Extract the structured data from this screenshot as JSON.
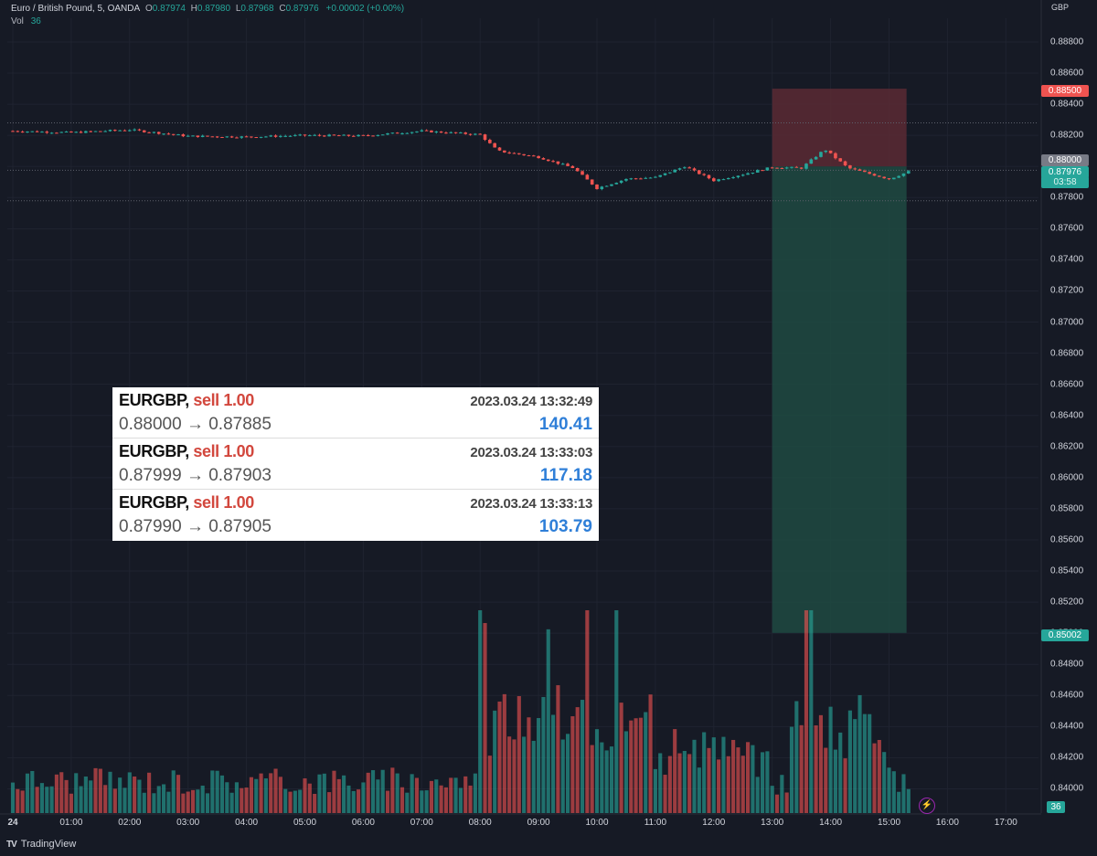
{
  "header": {
    "instrument": "Euro / British Pound, 5, OANDA",
    "o_label": "O",
    "o_value": "0.87974",
    "h_label": "H",
    "h_value": "0.87980",
    "l_label": "L",
    "l_value": "0.87968",
    "c_label": "C",
    "c_value": "0.87976",
    "change": "+0.00002 (+0.00%)",
    "vol_label": "Vol",
    "vol_value": "36"
  },
  "currency": "GBP",
  "price_tags": {
    "stop": "0.88500",
    "entry": "0.88000",
    "last_price": "0.87976",
    "countdown": "03:58",
    "target": "0.85002",
    "volume": "36"
  },
  "colors": {
    "background": "#161a25",
    "up": "#26a69a",
    "down": "#ef5350",
    "profit_zone": "#1f4a42",
    "loss_zone": "#5a2a34",
    "profit_text": "#2f7fd8",
    "sell_text": "#d2473d"
  },
  "trades": [
    {
      "symbol": "EURGBP,",
      "side": "sell 1.00",
      "timestamp": "2023.03.24 13:32:49",
      "prices": "0.88000 → 0.87885",
      "profit": "140.41"
    },
    {
      "symbol": "EURGBP,",
      "side": "sell 1.00",
      "timestamp": "2023.03.24 13:33:03",
      "prices": "0.87999 → 0.87903",
      "profit": "117.18"
    },
    {
      "symbol": "EURGBP,",
      "side": "sell 1.00",
      "timestamp": "2023.03.24 13:33:13",
      "prices": "0.87990 → 0.87905",
      "profit": "103.79"
    }
  ],
  "branding": {
    "name": "TradingView"
  },
  "chart_data": {
    "type": "candlestick",
    "title": "Euro / British Pound, 5, OANDA",
    "ylabel": "GBP",
    "ylim": [
      0.839,
      0.8893
    ],
    "y_ticks": [
      "0.88800",
      "0.88600",
      "0.88400",
      "0.88200",
      "0.88000",
      "0.87800",
      "0.87600",
      "0.87400",
      "0.87200",
      "0.87000",
      "0.86800",
      "0.86600",
      "0.86400",
      "0.86200",
      "0.86000",
      "0.85800",
      "0.85600",
      "0.85400",
      "0.85200",
      "0.85000",
      "0.84800",
      "0.84600",
      "0.84400",
      "0.84200",
      "0.84000"
    ],
    "x_ticks": [
      "24",
      "01:00",
      "02:00",
      "03:00",
      "04:00",
      "05:00",
      "06:00",
      "07:00",
      "08:00",
      "09:00",
      "10:00",
      "11:00",
      "12:00",
      "13:00",
      "14:00",
      "15:00",
      "16:00",
      "17:00"
    ],
    "price_path": [
      {
        "t": 0.0,
        "p": 0.88228
      },
      {
        "t": 1.0,
        "p": 0.88218
      },
      {
        "t": 2.0,
        "p": 0.88236
      },
      {
        "t": 3.0,
        "p": 0.88195
      },
      {
        "t": 4.0,
        "p": 0.8819
      },
      {
        "t": 5.0,
        "p": 0.882
      },
      {
        "t": 6.0,
        "p": 0.88197
      },
      {
        "t": 7.0,
        "p": 0.88228
      },
      {
        "t": 8.0,
        "p": 0.88205
      },
      {
        "t": 8.3,
        "p": 0.881
      },
      {
        "t": 9.0,
        "p": 0.8806
      },
      {
        "t": 9.6,
        "p": 0.8799
      },
      {
        "t": 10.0,
        "p": 0.8786
      },
      {
        "t": 10.5,
        "p": 0.8792
      },
      {
        "t": 11.0,
        "p": 0.8793
      },
      {
        "t": 11.5,
        "p": 0.88
      },
      {
        "t": 12.0,
        "p": 0.8791
      },
      {
        "t": 12.5,
        "p": 0.8795
      },
      {
        "t": 13.0,
        "p": 0.87995
      },
      {
        "t": 13.5,
        "p": 0.8799
      },
      {
        "t": 13.9,
        "p": 0.8811
      },
      {
        "t": 14.3,
        "p": 0.8799
      },
      {
        "t": 15.0,
        "p": 0.8792
      },
      {
        "t": 15.4,
        "p": 0.87976
      }
    ],
    "position": {
      "side": "short",
      "start_hour": 13.0,
      "end_hour": 15.3,
      "entry": 0.88,
      "stop": 0.885,
      "target": 0.85002
    },
    "dotted_levels": [
      0.8828,
      0.87976,
      0.8778
    ],
    "volume_last": 36
  }
}
